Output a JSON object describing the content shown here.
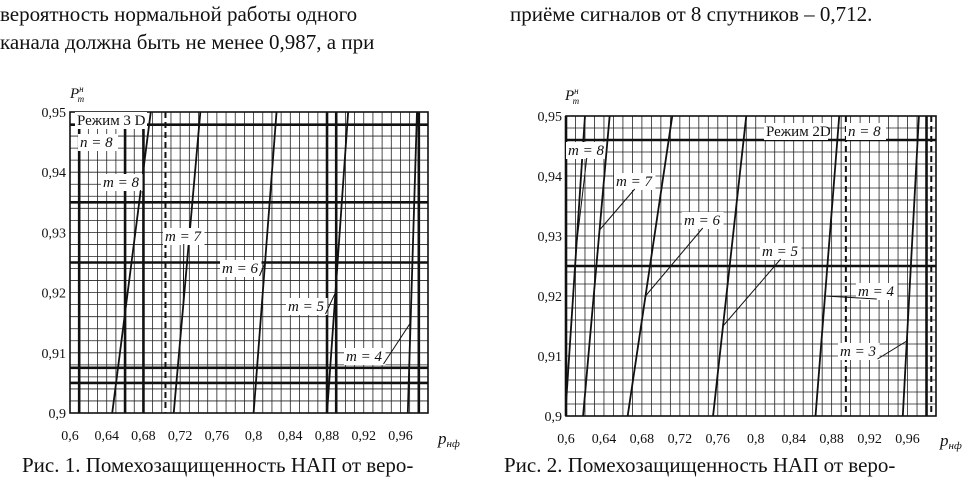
{
  "text": {
    "left_line1": "вероятность  нормальной  работы  одного",
    "left_line2": "канала должна быть не менее 0,987, а при",
    "right_line1": "приёме сигналов от 8 спутников – 0,712.",
    "caption1": "Рис. 1. Помехозащищенность НАП от веро-",
    "caption2": "Рис. 2. Помехозащищенность НАП от веро-"
  },
  "chart_data": [
    {
      "type": "line",
      "ylabel": "P",
      "ylabel_sup": "н",
      "ylabel_sub": "m",
      "xlabel": "p",
      "xlabel_sub": "нф",
      "xlim": [
        0.6,
        0.99
      ],
      "ylim": [
        0.9,
        0.95
      ],
      "xticks": [
        "0,6",
        "0,64",
        "0,68",
        "0,72",
        "0,76",
        "0,8",
        "0,84",
        "0,88",
        "0,92",
        "0,96"
      ],
      "yticks": [
        "0,95",
        "0,94",
        "0,93",
        "0,92",
        "0,91",
        "0,9"
      ],
      "mode_label": "Режим 3 D",
      "n_label": "n = 8",
      "bold_x": [
        0.61,
        0.66,
        0.68,
        0.88,
        0.89,
        0.98
      ],
      "bold_y": [
        0.935,
        0.925,
        0.9075,
        0.905,
        0.9479
      ],
      "dashed_x": [
        0.704
      ],
      "series": [
        {
          "label": "m = 8",
          "x": [
            0.646,
            0.688
          ],
          "y": [
            0.9,
            0.95
          ]
        },
        {
          "label": "m = 7",
          "x": [
            0.713,
            0.742
          ],
          "y": [
            0.9,
            0.95
          ]
        },
        {
          "label": "m = 6",
          "x": [
            0.8,
            0.825
          ],
          "y": [
            0.9,
            0.95
          ]
        },
        {
          "label": "m = 5",
          "x": [
            0.88,
            0.903
          ],
          "y": [
            0.9,
            0.95
          ]
        },
        {
          "label": "m = 4",
          "x": [
            0.968,
            0.978
          ],
          "y": [
            0.9,
            0.95
          ]
        }
      ]
    },
    {
      "type": "line",
      "ylabel": "P",
      "ylabel_sup": "н",
      "ylabel_sub": "m",
      "xlabel": "p",
      "xlabel_sub": "нф",
      "xlim": [
        0.6,
        0.99
      ],
      "ylim": [
        0.9,
        0.95
      ],
      "xticks": [
        "0,6",
        "0,64",
        "0,68",
        "0,72",
        "0,76",
        "0,8",
        "0,84",
        "0,88",
        "0,92",
        "0,96"
      ],
      "yticks": [
        "0,95",
        "0,94",
        "0,93",
        "0,92",
        "0,91",
        "0,9"
      ],
      "mode_label": "Режим 2D",
      "n_label": "n = 8",
      "bold_x": [
        0.6,
        0.98
      ],
      "bold_y": [
        0.946,
        0.925
      ],
      "dashed_x": [
        0.6,
        0.895,
        0.985
      ],
      "series": [
        {
          "label": "m = 8",
          "x": [
            0.6,
            0.62
          ],
          "y": [
            0.902,
            0.95
          ]
        },
        {
          "label": "m = 7",
          "x": [
            0.618,
            0.646
          ],
          "y": [
            0.9,
            0.95
          ]
        },
        {
          "label": "m = 6",
          "x": [
            0.665,
            0.712
          ],
          "y": [
            0.9,
            0.95
          ]
        },
        {
          "label": "m = 5",
          "x": [
            0.755,
            0.79
          ],
          "y": [
            0.9,
            0.95
          ]
        },
        {
          "label": "m = 4",
          "x": [
            0.863,
            0.888
          ],
          "y": [
            0.9,
            0.95
          ]
        },
        {
          "label": "m = 3",
          "x": [
            0.955,
            0.972
          ],
          "y": [
            0.9,
            0.95
          ]
        }
      ]
    }
  ]
}
